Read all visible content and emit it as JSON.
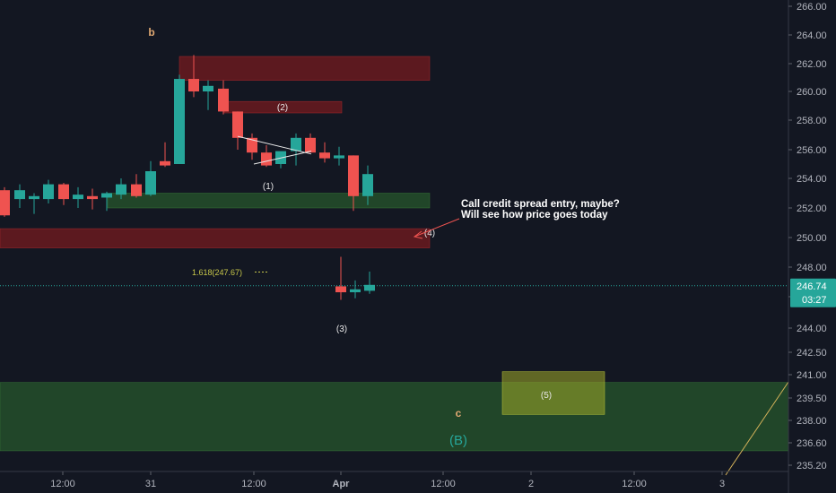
{
  "chart_data": {
    "type": "candlestick",
    "title": "",
    "price_axis": {
      "ticks": [
        "266.00",
        "264.00",
        "262.00",
        "260.00",
        "258.00",
        "256.00",
        "254.00",
        "252.00",
        "250.00",
        "248.00",
        "246.00",
        "244.00",
        "242.50",
        "241.00",
        "239.50",
        "238.00",
        "236.60",
        "235.20"
      ],
      "range": [
        235.2,
        266.0
      ]
    },
    "time_axis": {
      "ticks": [
        "12:00",
        "31",
        "12:00",
        "Apr",
        "12:00",
        "2",
        "12:00",
        "3"
      ]
    },
    "last_price": {
      "value": "246.74",
      "countdown": "03:27"
    },
    "candles": [
      {
        "o": 253.2,
        "h": 253.4,
        "l": 251.4,
        "c": 251.5
      },
      {
        "o": 252.6,
        "h": 253.6,
        "l": 252.0,
        "c": 253.2
      },
      {
        "o": 252.6,
        "h": 253.0,
        "l": 251.6,
        "c": 252.8
      },
      {
        "o": 252.6,
        "h": 253.9,
        "l": 252.3,
        "c": 253.6
      },
      {
        "o": 253.6,
        "h": 253.7,
        "l": 252.2,
        "c": 252.6
      },
      {
        "o": 252.6,
        "h": 253.4,
        "l": 252.0,
        "c": 252.9
      },
      {
        "o": 252.8,
        "h": 253.3,
        "l": 251.9,
        "c": 252.6
      },
      {
        "o": 252.7,
        "h": 253.1,
        "l": 251.8,
        "c": 253.0
      },
      {
        "o": 252.9,
        "h": 254.0,
        "l": 252.6,
        "c": 253.6
      },
      {
        "o": 253.6,
        "h": 254.3,
        "l": 252.7,
        "c": 252.8
      },
      {
        "o": 252.9,
        "h": 255.2,
        "l": 252.8,
        "c": 254.5
      },
      {
        "o": 255.2,
        "h": 256.5,
        "l": 254.8,
        "c": 254.9
      },
      {
        "o": 255.0,
        "h": 261.2,
        "l": 255.0,
        "c": 260.9
      },
      {
        "o": 260.9,
        "h": 262.6,
        "l": 259.6,
        "c": 260.0
      },
      {
        "o": 260.0,
        "h": 260.8,
        "l": 258.7,
        "c": 260.4
      },
      {
        "o": 260.2,
        "h": 260.8,
        "l": 258.4,
        "c": 258.6
      },
      {
        "o": 258.6,
        "h": 258.6,
        "l": 256.0,
        "c": 256.8
      },
      {
        "o": 256.8,
        "h": 257.1,
        "l": 255.3,
        "c": 255.8
      },
      {
        "o": 255.8,
        "h": 256.3,
        "l": 254.8,
        "c": 254.9
      },
      {
        "o": 255.0,
        "h": 255.8,
        "l": 254.7,
        "c": 255.9
      },
      {
        "o": 255.9,
        "h": 257.1,
        "l": 254.9,
        "c": 256.8
      },
      {
        "o": 256.8,
        "h": 257.1,
        "l": 255.8,
        "c": 255.8
      },
      {
        "o": 255.8,
        "h": 256.5,
        "l": 255.1,
        "c": 255.4
      },
      {
        "o": 255.4,
        "h": 256.2,
        "l": 254.9,
        "c": 255.6
      },
      {
        "o": 255.6,
        "h": 255.6,
        "l": 251.8,
        "c": 252.8
      },
      {
        "o": 252.8,
        "h": 254.9,
        "l": 252.2,
        "c": 254.3
      },
      {
        "o": 246.7,
        "h": 248.7,
        "l": 245.8,
        "c": 246.3
      },
      {
        "o": 246.3,
        "h": 247.1,
        "l": 245.9,
        "c": 246.5
      },
      {
        "o": 246.4,
        "h": 247.7,
        "l": 246.2,
        "c": 246.8
      }
    ],
    "zones": [
      {
        "color": "red",
        "top": 262.5,
        "bottom": 260.8
      },
      {
        "color": "red",
        "top": 259.3,
        "bottom": 258.5
      },
      {
        "color": "green",
        "top": 253.0,
        "bottom": 252.0
      },
      {
        "color": "red",
        "top": 250.6,
        "bottom": 249.3
      },
      {
        "color": "green",
        "top": 240.5,
        "bottom": 236.1
      },
      {
        "color": "yellow",
        "top": 241.2,
        "bottom": 238.4
      }
    ],
    "wave_labels": [
      "b",
      "(2)",
      "(1)",
      "(3)",
      "(4)",
      "(5)",
      "c",
      "(B)"
    ],
    "fib_label": "1.618(247.67)",
    "annotation": [
      "Call credit spread entry, maybe?",
      "Will see how price goes today"
    ],
    "colors": {
      "background": "#131722",
      "up": "#26a69a",
      "down": "#ef5350",
      "axis_text": "#b2b5be",
      "last_price": "#26a69a",
      "wave_orange": "#e0a872",
      "wave_teal": "#26a69a",
      "fib": "#c8c84a"
    }
  }
}
